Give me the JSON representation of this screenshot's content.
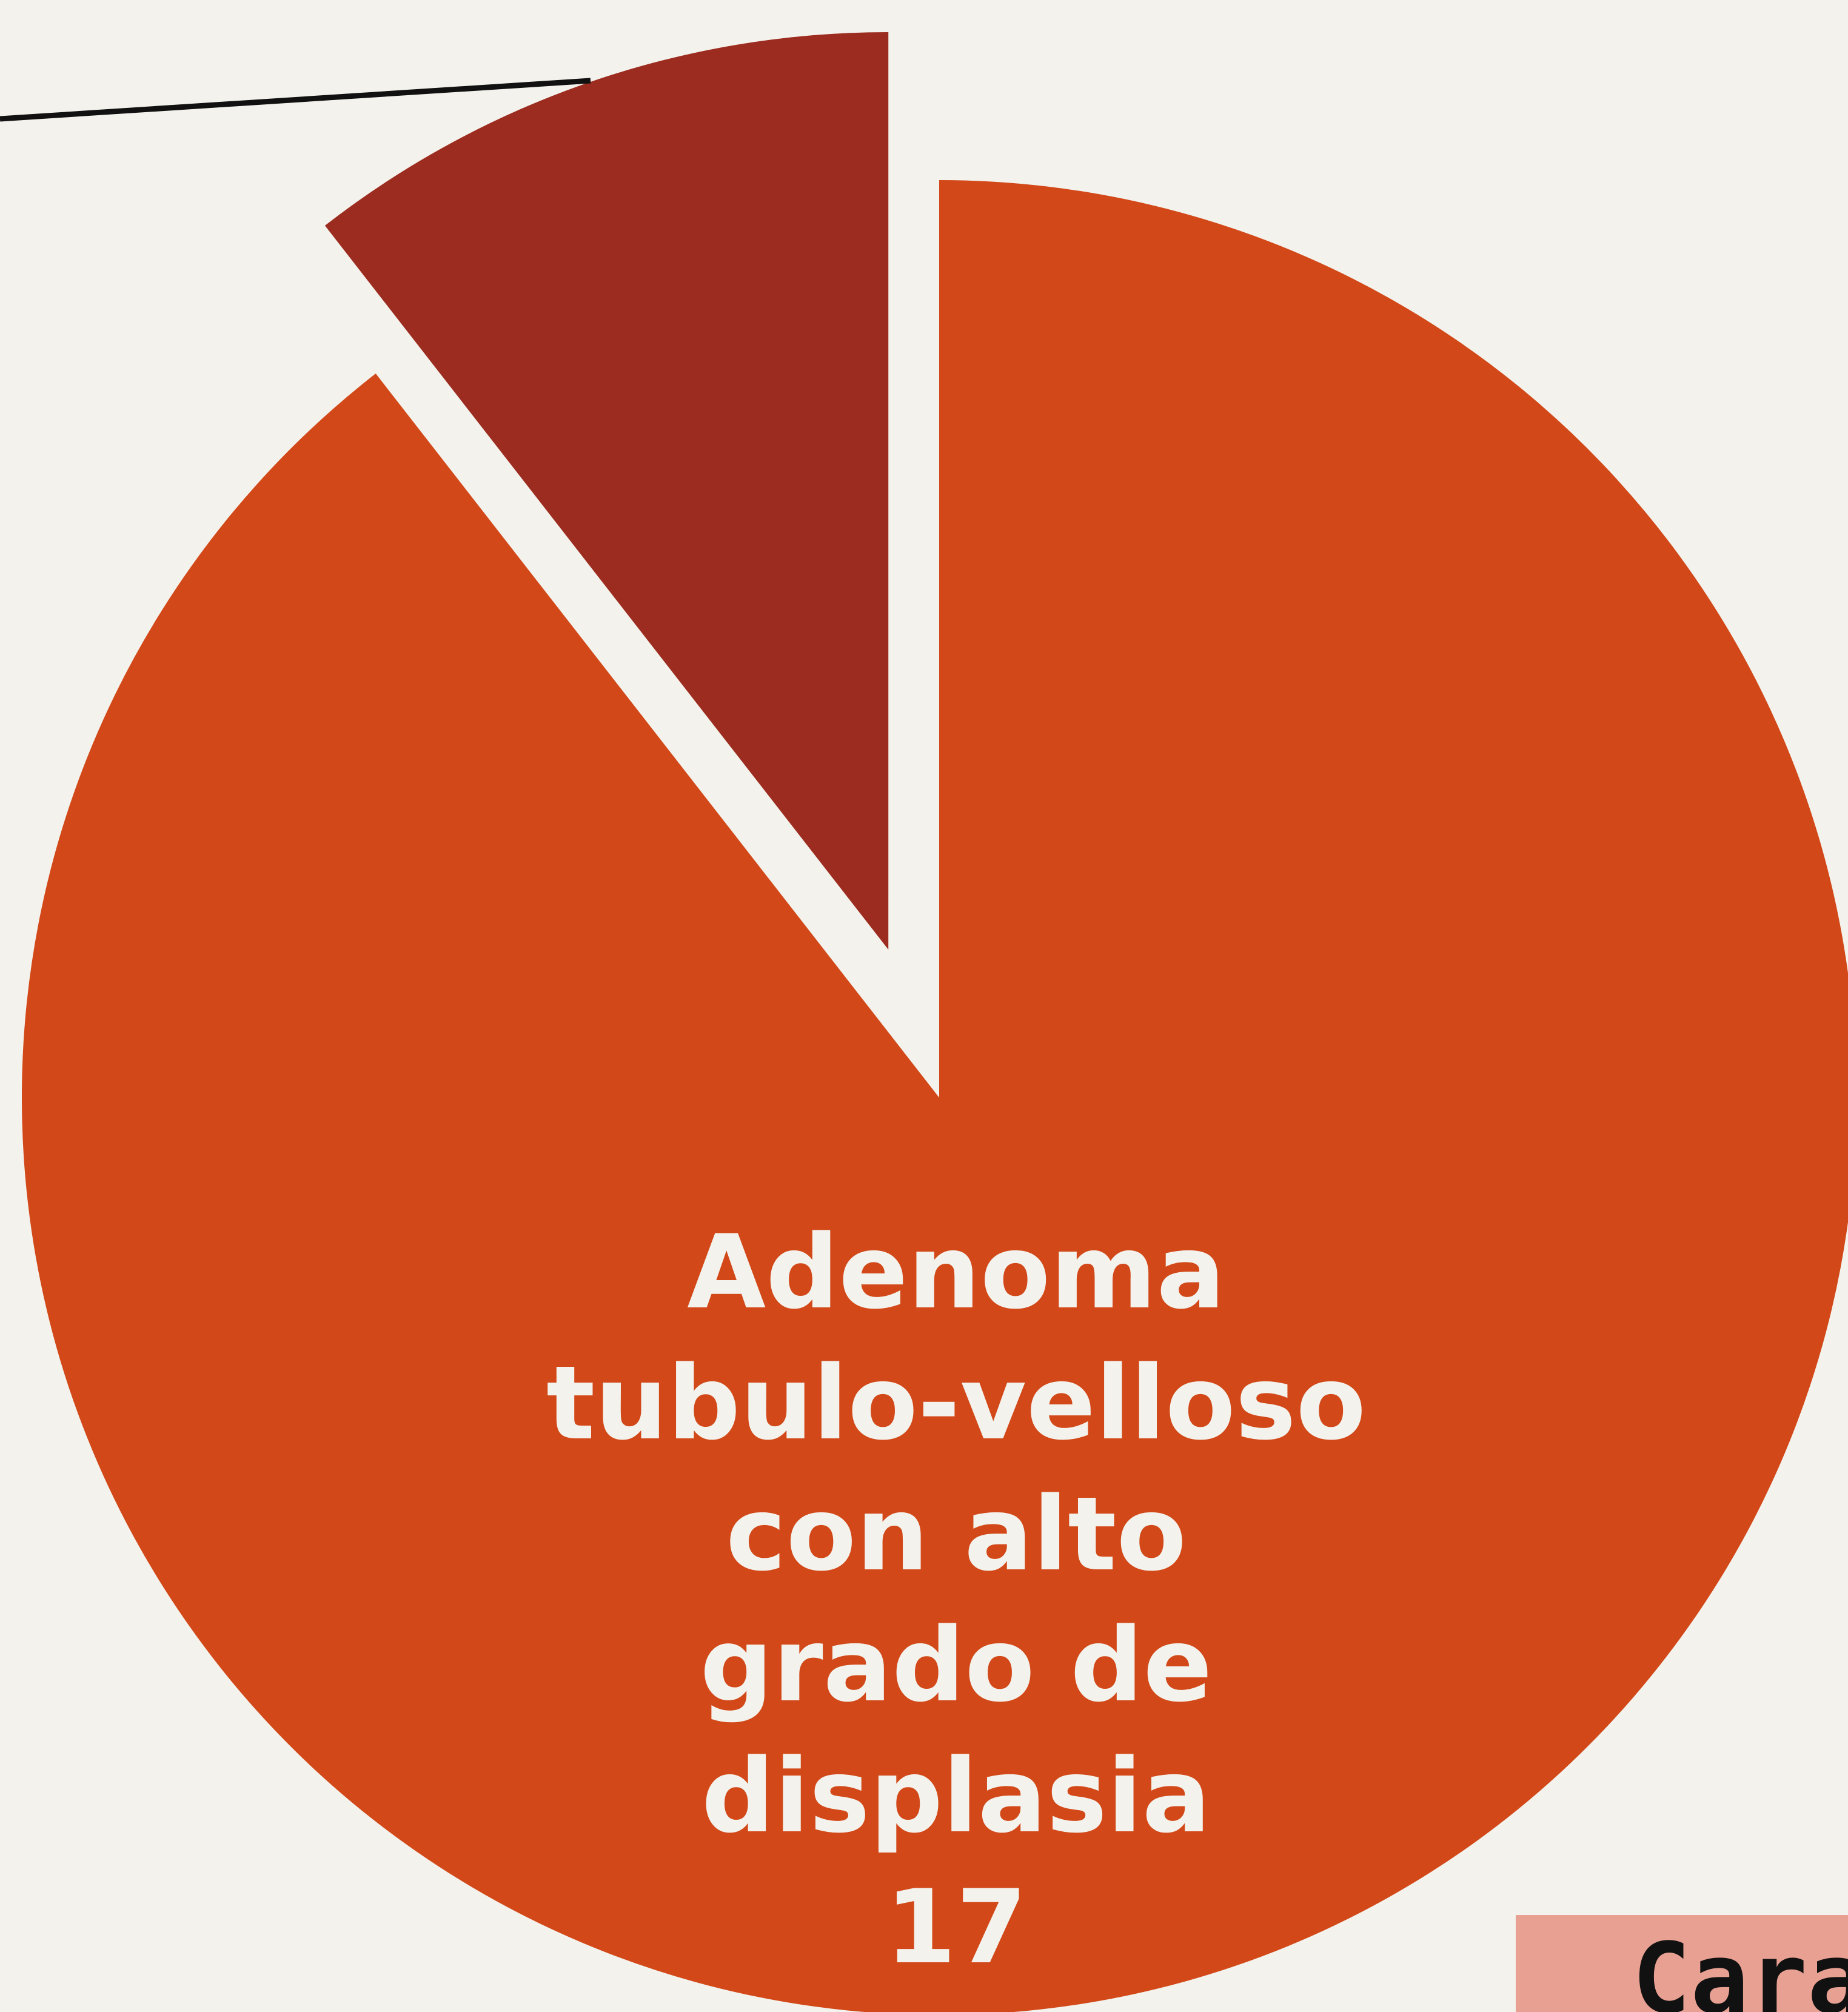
{
  "chart_data": {
    "type": "pie",
    "title": "Caract",
    "categories": [
      "Adenoma tubulo-velloso con alto grado de displasia",
      null
    ],
    "values": [
      17,
      2
    ],
    "colors": [
      "#d24818",
      "#9c2c1f"
    ]
  }
}
